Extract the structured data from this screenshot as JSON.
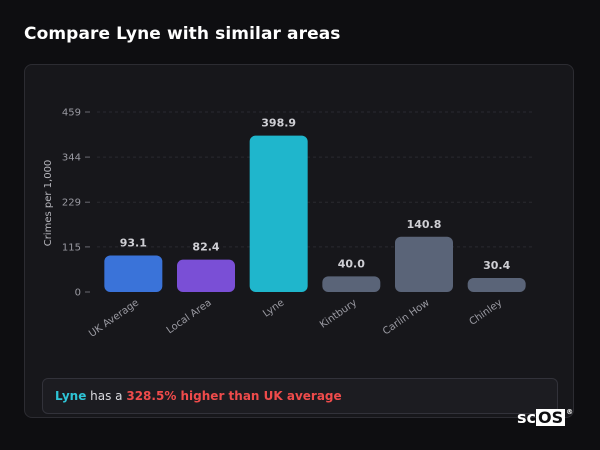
{
  "page": {
    "title": "Compare Lyne with similar areas"
  },
  "chart_data": {
    "type": "bar",
    "title": "",
    "xlabel": "",
    "ylabel": "Crimes per 1,000",
    "ylim": [
      0,
      459
    ],
    "yticks": [
      0,
      115,
      229,
      344,
      459
    ],
    "grid": true,
    "categories": [
      "UK Average",
      "Local Area",
      "Lyne",
      "Kintbury",
      "Carlin How",
      "Chinley"
    ],
    "values": [
      93.1,
      82.4,
      398.9,
      40.0,
      140.8,
      30.4
    ],
    "value_labels": [
      "93.1",
      "82.4",
      "398.9",
      "40.0",
      "140.8",
      "30.4"
    ],
    "colors": [
      "#3a73d9",
      "#7a4fd6",
      "#1fb6cc",
      "#5a6478",
      "#5a6478",
      "#5a6478"
    ]
  },
  "summary": {
    "place": "Lyne",
    "middle": " has a ",
    "difference": "328.5% higher than UK average"
  },
  "brand": {
    "prefix": "sc",
    "boxed": "OS",
    "mark": "®"
  }
}
